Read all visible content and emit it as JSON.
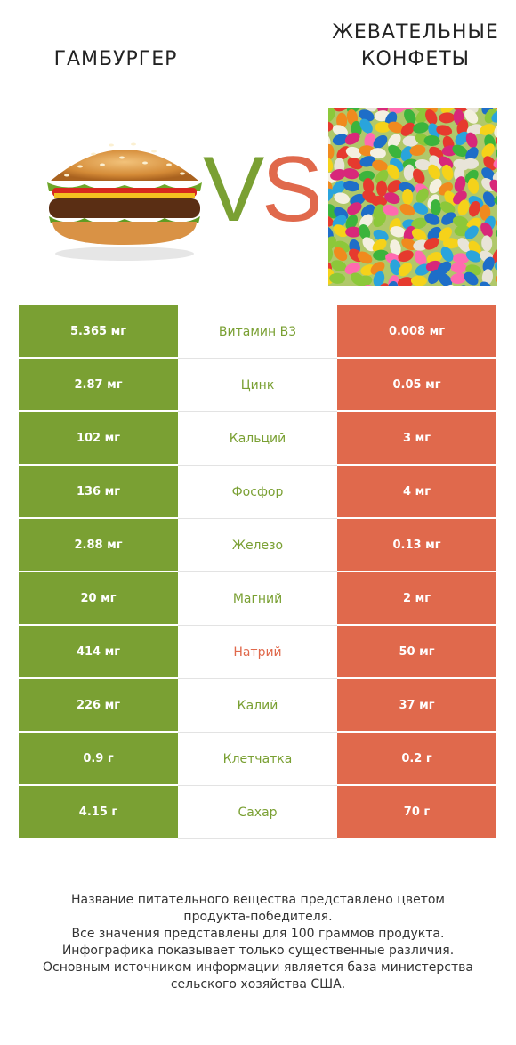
{
  "header": {
    "left_title": "ГАМБУРГЕР",
    "right_title_line1": "ЖЕВАТЕЛЬНЫЕ",
    "right_title_line2": "КОНФЕТЫ",
    "vs_text": "VS"
  },
  "colors": {
    "winner_left": "#7aa033",
    "winner_right": "#e0694c"
  },
  "rows": [
    {
      "left": "5.365 мг",
      "name": "Витамин B3",
      "right": "0.008 мг",
      "winner": "left"
    },
    {
      "left": "2.87 мг",
      "name": "Цинк",
      "right": "0.05 мг",
      "winner": "left"
    },
    {
      "left": "102 мг",
      "name": "Кальций",
      "right": "3 мг",
      "winner": "left"
    },
    {
      "left": "136 мг",
      "name": "Фосфор",
      "right": "4 мг",
      "winner": "left"
    },
    {
      "left": "2.88 мг",
      "name": "Железо",
      "right": "0.13 мг",
      "winner": "left"
    },
    {
      "left": "20 мг",
      "name": "Магний",
      "right": "2 мг",
      "winner": "left"
    },
    {
      "left": "414 мг",
      "name": "Натрий",
      "right": "50 мг",
      "winner": "right"
    },
    {
      "left": "226 мг",
      "name": "Калий",
      "right": "37 мг",
      "winner": "left"
    },
    {
      "left": "0.9 г",
      "name": "Клетчатка",
      "right": "0.2 г",
      "winner": "left"
    },
    {
      "left": "4.15 г",
      "name": "Сахар",
      "right": "70 г",
      "winner": "left"
    }
  ],
  "footer": {
    "line1": "Название питательного вещества представлено цветом",
    "line2": "продукта-победителя.",
    "line3": "Все значения представлены для 100 граммов продукта.",
    "line4": "Инфографика показывает только существенные различия.",
    "line5": "Основным источником информации является база министерства",
    "line6": "сельского хозяйства США."
  }
}
